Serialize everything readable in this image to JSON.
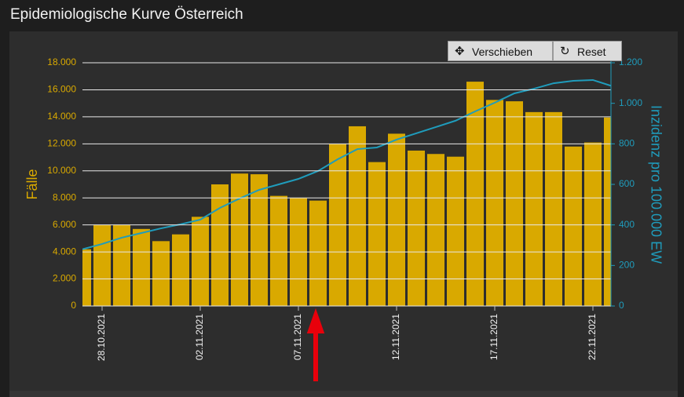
{
  "toolbar": {
    "buttons": [
      "Verschieben",
      "Reset"
    ]
  },
  "chart_data": {
    "type": "bar",
    "title": "Epidemiologische Kurve Österreich",
    "y_label": "Fälle",
    "y2_label": "Inzidenz pro 100.000 EW",
    "categories": [
      null,
      "28.10.2021",
      null,
      null,
      null,
      null,
      "02.11.2021",
      null,
      null,
      null,
      null,
      "07.11.2021",
      null,
      null,
      null,
      null,
      "12.11.2021",
      null,
      null,
      null,
      null,
      "17.11.2021",
      null,
      null,
      null,
      null,
      "22.11.2021",
      null
    ],
    "series": [
      {
        "type": "bar",
        "color": "#d9a900",
        "values": [
          4200,
          6000,
          6000,
          5700,
          4800,
          5300,
          6600,
          9000,
          9800,
          9750,
          8150,
          8000,
          7800,
          12000,
          13300,
          10650,
          12750,
          11500,
          11250,
          11050,
          16600,
          15250,
          15150,
          14350,
          14350,
          11800,
          12100,
          13950
        ]
      },
      {
        "type": "line",
        "axis": "y2",
        "color": "#1f9cbc",
        "values": [
          280,
          306,
          337,
          360,
          383,
          403,
          426,
          484,
          530,
          573,
          600,
          627,
          666,
          724,
          774,
          782,
          821,
          852,
          883,
          914,
          960,
          1003,
          1049,
          1072,
          1099,
          1111,
          1115,
          1084
        ]
      }
    ],
    "ylim": [
      0,
      18000
    ],
    "yticks": [
      0,
      {
        "value": 2000,
        "label": "2.000"
      },
      {
        "value": 4000,
        "label": "4.000"
      },
      {
        "value": 6000,
        "label": "6.000"
      },
      {
        "value": 8000,
        "label": "8.000"
      },
      {
        "value": 10000,
        "label": "10.000"
      },
      {
        "value": 12000,
        "label": "12.000"
      },
      {
        "value": 14000,
        "label": "14.000"
      },
      {
        "value": 16000,
        "label": "16.000"
      },
      {
        "value": 18000,
        "label": "18.000"
      }
    ],
    "y2lim": [
      0,
      1200
    ],
    "y2ticks": [
      0,
      200,
      400,
      600,
      800,
      {
        "value": 1000,
        "label": "1.000"
      },
      {
        "value": 1200,
        "label": "1.200"
      }
    ],
    "grid": true
  }
}
